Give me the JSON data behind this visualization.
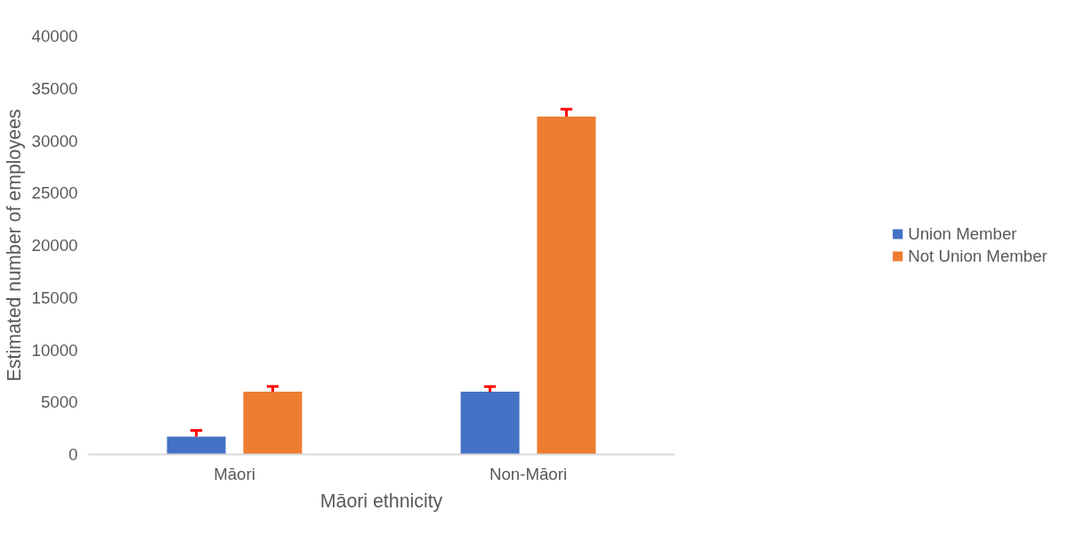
{
  "chart_data": {
    "type": "bar",
    "xlabel": "Māori ethnicity",
    "ylabel": "Estimated number of employees",
    "categories": [
      "Māori",
      "Non-Māori"
    ],
    "series": [
      {
        "name": "Union Member",
        "color": "#4472c4",
        "values": [
          1700,
          6000
        ],
        "errors": [
          [
            1700,
            2300
          ],
          [
            6000,
            6500
          ]
        ]
      },
      {
        "name": "Not Union Member",
        "color": "#ed7d31",
        "values": [
          6000,
          32300
        ],
        "errors": [
          [
            6000,
            6500
          ],
          [
            32300,
            33000
          ]
        ]
      }
    ],
    "ylim": [
      0,
      40000
    ],
    "yticks": [
      0,
      5000,
      10000,
      15000,
      20000,
      25000,
      30000,
      35000,
      40000
    ],
    "grid": false,
    "legend": "right"
  }
}
